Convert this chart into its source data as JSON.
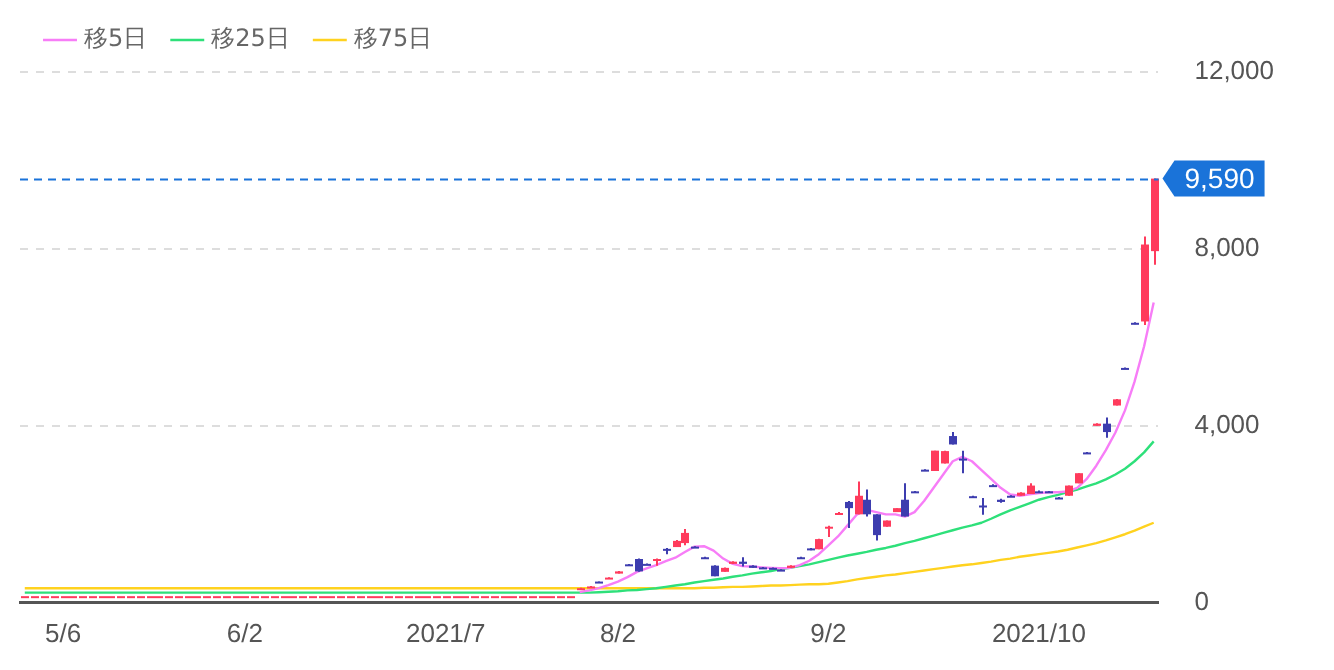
{
  "chart_data": {
    "type": "candlestick",
    "categories": [
      null,
      null,
      null,
      null,
      "5/6",
      null,
      null,
      null,
      null,
      null,
      null,
      null,
      null,
      null,
      null,
      null,
      null,
      null,
      null,
      null,
      null,
      null,
      null,
      "6/2",
      null,
      null,
      null,
      null,
      null,
      null,
      null,
      null,
      null,
      null,
      null,
      null,
      null,
      null,
      null,
      null,
      null,
      null,
      null,
      null,
      "2021/7",
      null,
      null,
      null,
      null,
      null,
      null,
      null,
      null,
      null,
      null,
      null,
      null,
      null,
      null,
      null,
      null,
      null,
      "8/2",
      null,
      null,
      null,
      null,
      null,
      null,
      null,
      null,
      null,
      null,
      null,
      null,
      null,
      null,
      null,
      null,
      null,
      null,
      null,
      null,
      null,
      "9/2",
      null,
      null,
      null,
      null,
      null,
      null,
      null,
      null,
      null,
      null,
      null,
      null,
      null,
      null,
      null,
      null,
      null,
      null,
      null,
      null,
      null,
      "2021/10",
      null,
      null,
      null,
      null,
      null,
      null,
      null,
      null,
      null,
      null,
      null,
      null
    ],
    "ohlc": [
      [
        150,
        150,
        150,
        150
      ],
      [
        150,
        150,
        150,
        150
      ],
      [
        150,
        150,
        150,
        150
      ],
      [
        150,
        150,
        150,
        150
      ],
      [
        150,
        150,
        150,
        150
      ],
      [
        150,
        150,
        150,
        150
      ],
      [
        150,
        150,
        150,
        150
      ],
      [
        150,
        150,
        150,
        150
      ],
      [
        150,
        150,
        150,
        150
      ],
      [
        150,
        150,
        150,
        150
      ],
      [
        150,
        150,
        150,
        150
      ],
      [
        150,
        150,
        150,
        150
      ],
      [
        150,
        150,
        150,
        150
      ],
      [
        150,
        150,
        150,
        150
      ],
      [
        150,
        150,
        150,
        150
      ],
      [
        150,
        150,
        150,
        150
      ],
      [
        150,
        150,
        150,
        150
      ],
      [
        150,
        150,
        150,
        150
      ],
      [
        150,
        150,
        150,
        150
      ],
      [
        150,
        150,
        150,
        150
      ],
      [
        150,
        150,
        150,
        150
      ],
      [
        150,
        150,
        150,
        150
      ],
      [
        150,
        150,
        150,
        150
      ],
      [
        150,
        150,
        150,
        150
      ],
      [
        150,
        150,
        150,
        150
      ],
      [
        150,
        150,
        150,
        150
      ],
      [
        150,
        150,
        150,
        150
      ],
      [
        150,
        150,
        150,
        150
      ],
      [
        150,
        150,
        150,
        150
      ],
      [
        150,
        150,
        150,
        150
      ],
      [
        150,
        150,
        150,
        150
      ],
      [
        150,
        150,
        150,
        150
      ],
      [
        150,
        150,
        150,
        150
      ],
      [
        150,
        150,
        150,
        150
      ],
      [
        150,
        150,
        150,
        150
      ],
      [
        150,
        150,
        150,
        150
      ],
      [
        150,
        150,
        150,
        150
      ],
      [
        150,
        150,
        150,
        150
      ],
      [
        150,
        150,
        150,
        150
      ],
      [
        150,
        150,
        150,
        150
      ],
      [
        150,
        150,
        150,
        150
      ],
      [
        150,
        150,
        150,
        150
      ],
      [
        150,
        150,
        150,
        150
      ],
      [
        150,
        150,
        150,
        150
      ],
      [
        150,
        150,
        150,
        150
      ],
      [
        150,
        150,
        150,
        150
      ],
      [
        150,
        150,
        150,
        150
      ],
      [
        150,
        150,
        150,
        150
      ],
      [
        150,
        150,
        150,
        150
      ],
      [
        150,
        150,
        150,
        150
      ],
      [
        150,
        150,
        150,
        150
      ],
      [
        150,
        150,
        150,
        150
      ],
      [
        150,
        150,
        150,
        150
      ],
      [
        150,
        150,
        150,
        150
      ],
      [
        150,
        150,
        150,
        150
      ],
      [
        150,
        150,
        150,
        150
      ],
      [
        150,
        150,
        150,
        150
      ],
      [
        150,
        150,
        150,
        150
      ],
      [
        300,
        340,
        300,
        330
      ],
      [
        340,
        380,
        340,
        370
      ],
      [
        480,
        480,
        450,
        460
      ],
      [
        540,
        580,
        540,
        570
      ],
      [
        660,
        720,
        660,
        710
      ],
      [
        870,
        880,
        850,
        860
      ],
      [
        990,
        1000,
        700,
        710
      ],
      [
        880,
        890,
        860,
        870
      ],
      [
        960,
        1000,
        840,
        990
      ],
      [
        1220,
        1240,
        1100,
        1200
      ],
      [
        1260,
        1420,
        1260,
        1400
      ],
      [
        1350,
        1670,
        1300,
        1580
      ],
      [
        1270,
        1280,
        1250,
        1260
      ],
      [
        1030,
        1040,
        1000,
        1020
      ],
      [
        840,
        850,
        600,
        600
      ],
      [
        700,
        800,
        700,
        790
      ],
      [
        880,
        940,
        880,
        930
      ],
      [
        930,
        1030,
        820,
        880
      ],
      [
        840,
        850,
        790,
        790
      ],
      [
        800,
        810,
        780,
        780
      ],
      [
        790,
        800,
        780,
        785
      ],
      [
        750,
        760,
        730,
        740
      ],
      [
        790,
        850,
        790,
        840
      ],
      [
        1030,
        1040,
        1010,
        1020
      ],
      [
        1230,
        1240,
        1190,
        1200
      ],
      [
        1210,
        1450,
        1210,
        1440
      ],
      [
        1700,
        1740,
        1490,
        1720
      ],
      [
        2000,
        2050,
        2000,
        2030
      ],
      [
        2280,
        2300,
        1690,
        2140
      ],
      [
        2000,
        2740,
        2000,
        2420
      ],
      [
        2330,
        2560,
        1950,
        2000
      ],
      [
        2000,
        2000,
        1410,
        1530
      ],
      [
        1720,
        1860,
        1720,
        1860
      ],
      [
        2050,
        2140,
        2050,
        2140
      ],
      [
        2330,
        2700,
        1950,
        1950
      ],
      [
        2520,
        2530,
        2500,
        2510
      ],
      [
        3010,
        3020,
        2990,
        3000
      ],
      [
        2980,
        3440,
        2980,
        3440
      ],
      [
        3150,
        3440,
        3150,
        3430
      ],
      [
        3770,
        3860,
        3580,
        3580
      ],
      [
        3260,
        3440,
        2930,
        3240
      ],
      [
        2410,
        2420,
        2390,
        2400
      ],
      [
        2200,
        2370,
        1990,
        2180
      ],
      [
        2660,
        2680,
        2620,
        2640
      ],
      [
        2330,
        2350,
        2260,
        2280
      ],
      [
        2420,
        2430,
        2400,
        2410
      ],
      [
        2420,
        2500,
        2420,
        2490
      ],
      [
        2460,
        2700,
        2460,
        2650
      ],
      [
        2520,
        2540,
        2500,
        2510
      ],
      [
        2520,
        2530,
        2480,
        2500
      ],
      [
        2380,
        2390,
        2350,
        2360
      ],
      [
        2420,
        2650,
        2420,
        2650
      ],
      [
        2700,
        2930,
        2700,
        2930
      ],
      [
        3400,
        3410,
        3380,
        3390
      ],
      [
        4000,
        4060,
        4000,
        4050
      ],
      [
        4050,
        4190,
        3730,
        3860
      ],
      [
        4460,
        4610,
        4460,
        4600
      ],
      [
        5310,
        5320,
        5290,
        5300
      ],
      [
        6330,
        6340,
        6300,
        6320
      ],
      [
        6360,
        8280,
        6280,
        8100
      ],
      [
        7950,
        9590,
        7640,
        9590
      ]
    ],
    "series": [
      {
        "name": "移5日",
        "type": "line",
        "color": "#f77df7",
        "values": [
          null,
          null,
          null,
          null,
          null,
          null,
          null,
          null,
          null,
          null,
          null,
          null,
          null,
          null,
          null,
          null,
          null,
          null,
          null,
          null,
          null,
          null,
          null,
          null,
          null,
          null,
          null,
          null,
          null,
          null,
          null,
          null,
          null,
          null,
          null,
          null,
          null,
          null,
          null,
          null,
          null,
          null,
          null,
          null,
          null,
          null,
          null,
          null,
          null,
          null,
          null,
          null,
          null,
          null,
          null,
          null,
          null,
          null,
          240,
          280,
          330,
          400,
          480,
          580,
          700,
          780,
          850,
          940,
          1020,
          1150,
          1270,
          1280,
          1180,
          1000,
          880,
          830,
          820,
          800,
          790,
          780,
          790,
          850,
          950,
          1100,
          1300,
          1500,
          1750,
          2000,
          2100,
          2050,
          2000,
          2000,
          1950,
          2050,
          2300,
          2600,
          2900,
          3200,
          3300,
          3200,
          3000,
          2800,
          2600,
          2450,
          2420,
          2450,
          2480,
          2500,
          2500,
          2520,
          2600,
          2800,
          3100,
          3450,
          3850,
          4350,
          5000,
          5800,
          6790
        ]
      },
      {
        "name": "移25日",
        "type": "line",
        "color": "#2ee07a",
        "values": [
          230,
          230,
          230,
          230,
          230,
          230,
          230,
          230,
          230,
          230,
          230,
          230,
          230,
          230,
          230,
          230,
          230,
          230,
          230,
          230,
          230,
          230,
          230,
          230,
          230,
          230,
          230,
          230,
          230,
          230,
          230,
          230,
          230,
          230,
          230,
          230,
          230,
          230,
          230,
          230,
          230,
          230,
          230,
          230,
          230,
          230,
          230,
          230,
          230,
          230,
          230,
          230,
          230,
          230,
          230,
          230,
          230,
          230,
          230,
          230,
          240,
          250,
          260,
          280,
          290,
          310,
          330,
          360,
          390,
          420,
          460,
          490,
          520,
          550,
          590,
          620,
          660,
          690,
          720,
          760,
          790,
          830,
          870,
          920,
          970,
          1020,
          1070,
          1110,
          1150,
          1200,
          1240,
          1290,
          1350,
          1400,
          1460,
          1520,
          1580,
          1640,
          1700,
          1750,
          1810,
          1900,
          2000,
          2090,
          2170,
          2250,
          2330,
          2390,
          2440,
          2500,
          2560,
          2630,
          2700,
          2790,
          2900,
          3030,
          3200,
          3400,
          3650
        ]
      },
      {
        "name": "移75日",
        "type": "line",
        "color": "#ffd21f",
        "values": [
          330,
          330,
          330,
          330,
          330,
          330,
          330,
          330,
          330,
          330,
          330,
          330,
          330,
          330,
          330,
          330,
          330,
          330,
          330,
          330,
          330,
          330,
          330,
          330,
          330,
          330,
          330,
          330,
          330,
          330,
          330,
          330,
          330,
          330,
          330,
          330,
          330,
          330,
          330,
          330,
          330,
          330,
          330,
          330,
          330,
          330,
          330,
          330,
          330,
          330,
          330,
          330,
          330,
          330,
          330,
          330,
          330,
          330,
          330,
          330,
          330,
          330,
          330,
          330,
          330,
          330,
          330,
          330,
          330,
          330,
          330,
          340,
          340,
          350,
          360,
          360,
          370,
          380,
          390,
          390,
          400,
          410,
          420,
          420,
          430,
          460,
          490,
          530,
          560,
          590,
          620,
          640,
          670,
          700,
          730,
          760,
          790,
          820,
          850,
          870,
          900,
          930,
          970,
          1000,
          1040,
          1070,
          1100,
          1130,
          1160,
          1200,
          1250,
          1300,
          1350,
          1410,
          1480,
          1550,
          1630,
          1720,
          1810
        ]
      }
    ],
    "ylim": [
      0,
      12000
    ],
    "yticks": [
      0,
      {
        "value": 4000,
        "label": "4,000"
      },
      {
        "value": 8000,
        "label": "8,000"
      },
      {
        "value": 12000,
        "label": "12,000"
      }
    ],
    "ref_lines": [
      {
        "axis": "y",
        "value": 9590,
        "label": "9,590",
        "color": "#1a73d9",
        "line_style": "dashed"
      }
    ],
    "grid": "y",
    "legend": "top left"
  }
}
